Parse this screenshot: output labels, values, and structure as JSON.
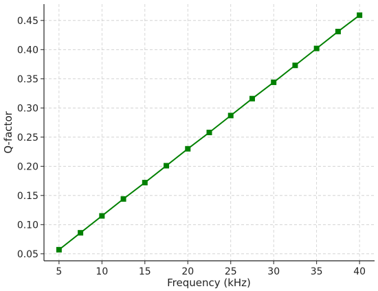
{
  "chart_data": {
    "type": "line",
    "title": "",
    "xlabel": "Frequency (kHz)",
    "ylabel": "Q-factor",
    "xlim": [
      3.25,
      41.75
    ],
    "ylim": [
      0.038,
      0.478
    ],
    "xticks": [
      5,
      10,
      15,
      20,
      25,
      30,
      35,
      40
    ],
    "yticks": [
      0.05,
      0.1,
      0.15,
      0.2,
      0.25,
      0.3,
      0.35,
      0.4,
      0.45
    ],
    "ytick_labels": [
      "0.05",
      "0.10",
      "0.15",
      "0.20",
      "0.25",
      "0.30",
      "0.35",
      "0.40",
      "0.45"
    ],
    "grid": true,
    "legend": "none",
    "series": [
      {
        "color": "#008000",
        "marker": "square",
        "x": [
          5,
          7.5,
          10,
          12.5,
          15,
          17.5,
          20,
          22.5,
          25,
          27.5,
          30,
          32.5,
          35,
          37.5,
          40
        ],
        "y": [
          0.057,
          0.086,
          0.115,
          0.144,
          0.172,
          0.201,
          0.23,
          0.258,
          0.287,
          0.316,
          0.344,
          0.373,
          0.402,
          0.431,
          0.459
        ]
      }
    ]
  }
}
